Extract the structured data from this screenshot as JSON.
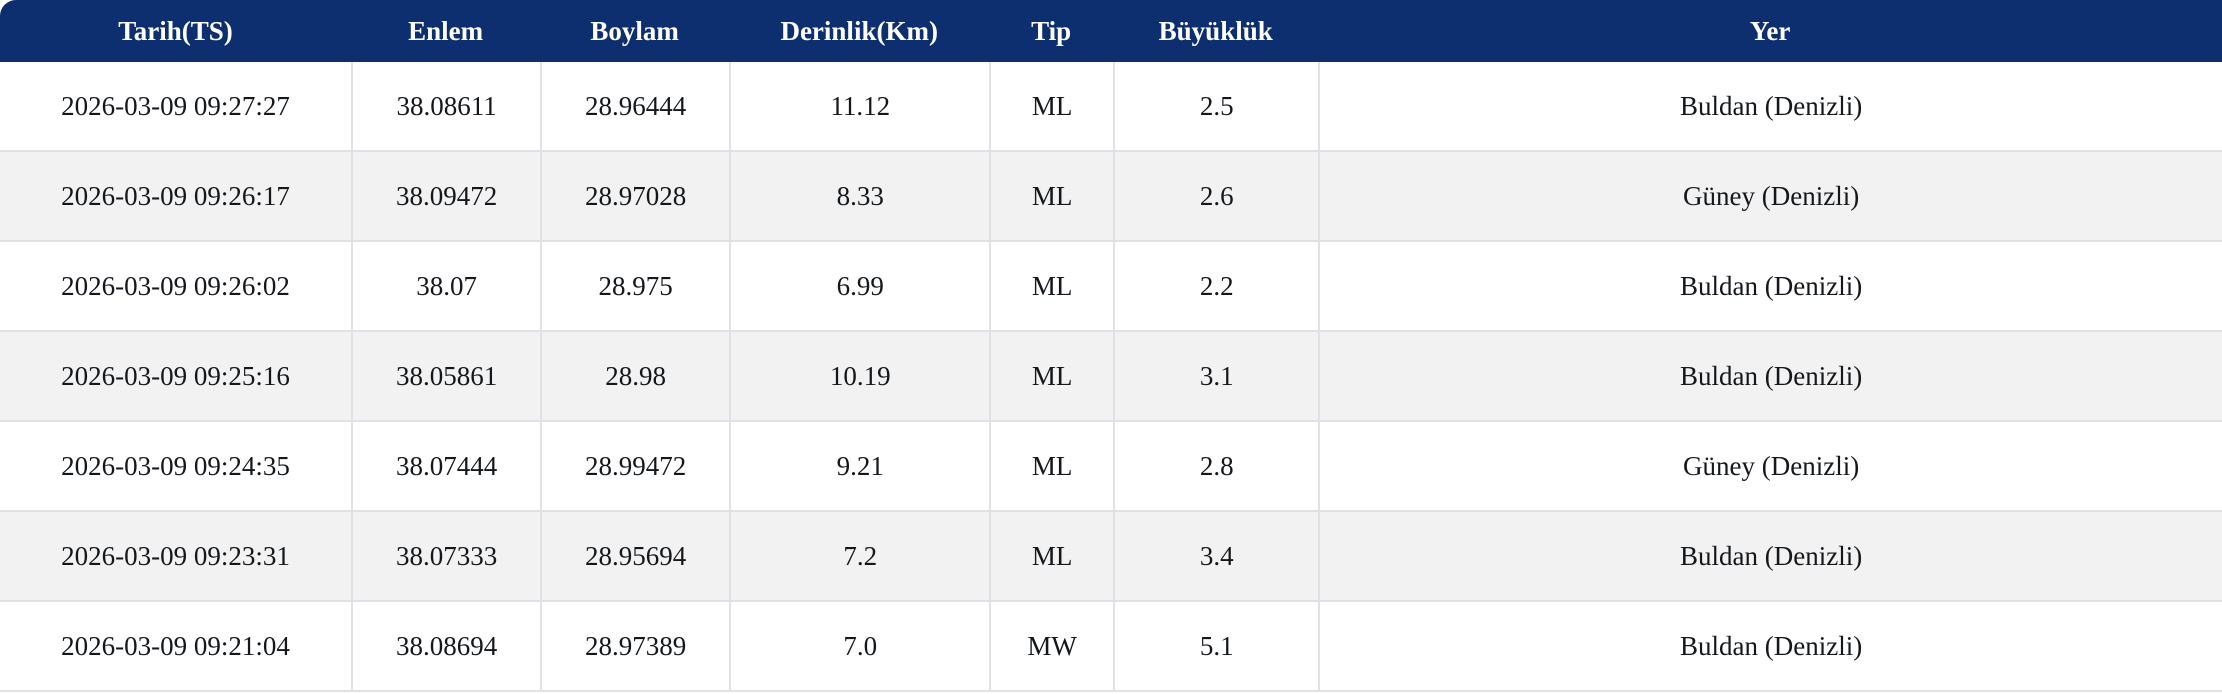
{
  "table": {
    "columns": [
      "Tarih(TS)",
      "Enlem",
      "Boylam",
      "Derinlik(Km)",
      "Tip",
      "Büyüklük",
      "Yer"
    ],
    "rows": [
      [
        "2026-03-09 09:27:27",
        "38.08611",
        "28.96444",
        "11.12",
        "ML",
        "2.5",
        "Buldan (Denizli)"
      ],
      [
        "2026-03-09 09:26:17",
        "38.09472",
        "28.97028",
        "8.33",
        "ML",
        "2.6",
        "Güney (Denizli)"
      ],
      [
        "2026-03-09 09:26:02",
        "38.07",
        "28.975",
        "6.99",
        "ML",
        "2.2",
        "Buldan (Denizli)"
      ],
      [
        "2026-03-09 09:25:16",
        "38.05861",
        "28.98",
        "10.19",
        "ML",
        "3.1",
        "Buldan (Denizli)"
      ],
      [
        "2026-03-09 09:24:35",
        "38.07444",
        "28.99472",
        "9.21",
        "ML",
        "2.8",
        "Güney (Denizli)"
      ],
      [
        "2026-03-09 09:23:31",
        "38.07333",
        "28.95694",
        "7.2",
        "ML",
        "3.4",
        "Buldan (Denizli)"
      ],
      [
        "2026-03-09 09:21:04",
        "38.08694",
        "28.97389",
        "7.0",
        "MW",
        "5.1",
        "Buldan (Denizli)"
      ]
    ],
    "colors": {
      "header_bg": "#0d2f6f",
      "header_text": "#ffffff",
      "row_bg": "#ffffff",
      "row_alt_bg": "#f2f2f2",
      "border": "#dee2e6",
      "cell_text": "#14181c"
    }
  }
}
